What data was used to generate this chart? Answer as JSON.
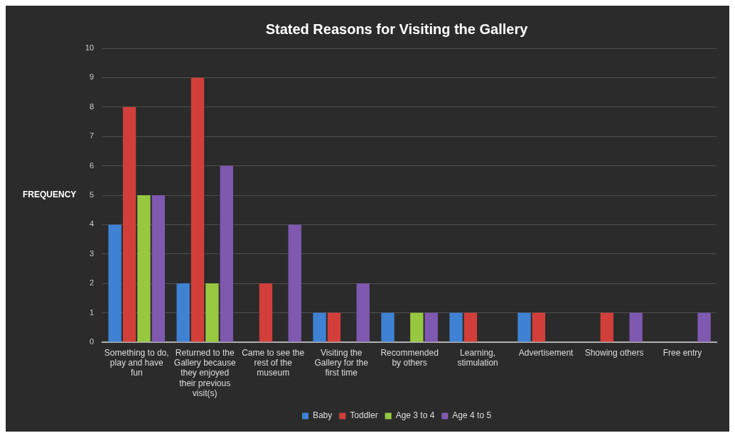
{
  "chart_data": {
    "type": "bar",
    "title": "Stated Reasons for Visiting the Gallery",
    "ylabel": "FREQUENCY",
    "categories": [
      "Something to do, play and have fun",
      "Returned to the Gallery because they enjoyed their previous visit(s)",
      "Came to see the rest of the museum",
      "Visiting the Gallery for the first time",
      "Recommended by others",
      "Learning, stimulation",
      "Advertisement",
      "Showing others",
      "Free entry"
    ],
    "series": [
      {
        "name": "Baby",
        "color": "#3f82d4",
        "values": [
          4,
          2,
          0,
          1,
          1,
          1,
          1,
          0,
          0
        ]
      },
      {
        "name": "Toddler",
        "color": "#d23f3a",
        "values": [
          8,
          9,
          2,
          1,
          0,
          1,
          1,
          1,
          0
        ]
      },
      {
        "name": "Age 3 to 4",
        "color": "#98c840",
        "values": [
          5,
          2,
          0,
          0,
          1,
          0,
          0,
          0,
          0
        ]
      },
      {
        "name": "Age 4 to 5",
        "color": "#7f58b0",
        "values": [
          5,
          6,
          4,
          2,
          1,
          0,
          0,
          1,
          1
        ]
      }
    ],
    "ylim": [
      0,
      10
    ],
    "yticks": [
      0,
      1,
      2,
      3,
      4,
      5,
      6,
      7,
      8,
      9,
      10
    ],
    "grid": "y",
    "legend": "bottom"
  }
}
